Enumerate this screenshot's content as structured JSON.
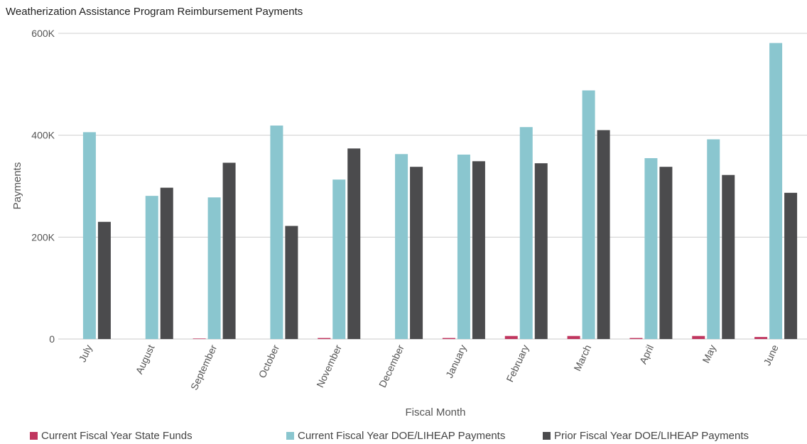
{
  "chart_data": {
    "type": "bar",
    "title": "Weatherization Assistance Program Reimbursement Payments",
    "xlabel": "Fiscal Month",
    "ylabel": "Payments",
    "ylim": [
      0,
      600000
    ],
    "yticks": [
      0,
      200000,
      400000,
      600000
    ],
    "ytick_labels": [
      "0",
      "200K",
      "400K",
      "600K"
    ],
    "grid": true,
    "legend_position": "bottom",
    "categories": [
      "July",
      "August",
      "September",
      "October",
      "November",
      "December",
      "January",
      "February",
      "March",
      "April",
      "May",
      "June"
    ],
    "series": [
      {
        "name": "Current Fiscal Year State Funds",
        "color": "#c0365f",
        "values": [
          0,
          0,
          1000,
          0,
          2000,
          0,
          2000,
          6000,
          6000,
          2000,
          6000,
          4000
        ]
      },
      {
        "name": "Current Fiscal Year DOE/LIHEAP Payments",
        "color": "#8ac6cf",
        "values": [
          406000,
          281000,
          278000,
          419000,
          313000,
          363000,
          362000,
          416000,
          488000,
          355000,
          392000,
          581000
        ]
      },
      {
        "name": "Prior Fiscal Year DOE/LIHEAP Payments",
        "color": "#4b4b4d",
        "values": [
          230000,
          297000,
          346000,
          222000,
          374000,
          338000,
          349000,
          345000,
          410000,
          338000,
          322000,
          287000
        ]
      }
    ]
  }
}
